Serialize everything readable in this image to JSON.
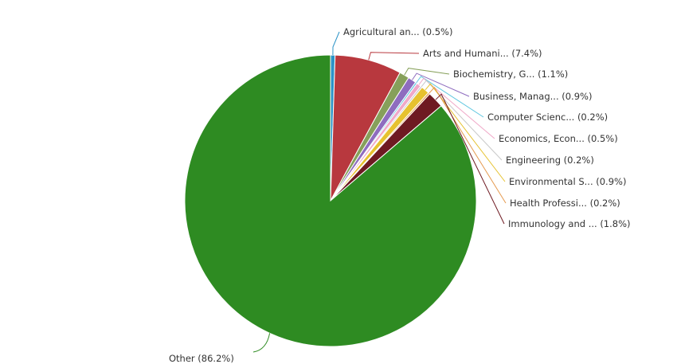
{
  "chart_data": {
    "type": "pie",
    "title": "",
    "slices": [
      {
        "label": "Agricultural an... (0.5%)",
        "value": 0.5,
        "color": "#2b93c7"
      },
      {
        "label": "Arts and Humani... (7.4%)",
        "value": 7.4,
        "color": "#b8383e"
      },
      {
        "label": "Biochemistry, G... (1.1%)",
        "value": 1.1,
        "color": "#86a05a"
      },
      {
        "label": "Business, Manag... (0.9%)",
        "value": 0.9,
        "color": "#8e6cbf"
      },
      {
        "label": "Computer Scienc... (0.2%)",
        "value": 0.2,
        "color": "#5fc7e0"
      },
      {
        "label": "Economics, Econ... (0.5%)",
        "value": 0.5,
        "color": "#f0a8c8"
      },
      {
        "label": "Engineering (0.2%)",
        "value": 0.2,
        "color": "#c9c9c9"
      },
      {
        "label": "Environmental S... (0.9%)",
        "value": 0.9,
        "color": "#e6c22f"
      },
      {
        "label": "Health Professi... (0.2%)",
        "value": 0.2,
        "color": "#e59a4f"
      },
      {
        "label": "Immunology and ... (1.8%)",
        "value": 1.8,
        "color": "#6e1a22"
      },
      {
        "label": "Other (86.2%)",
        "value": 86.2,
        "color": "#2e8b22"
      }
    ]
  }
}
